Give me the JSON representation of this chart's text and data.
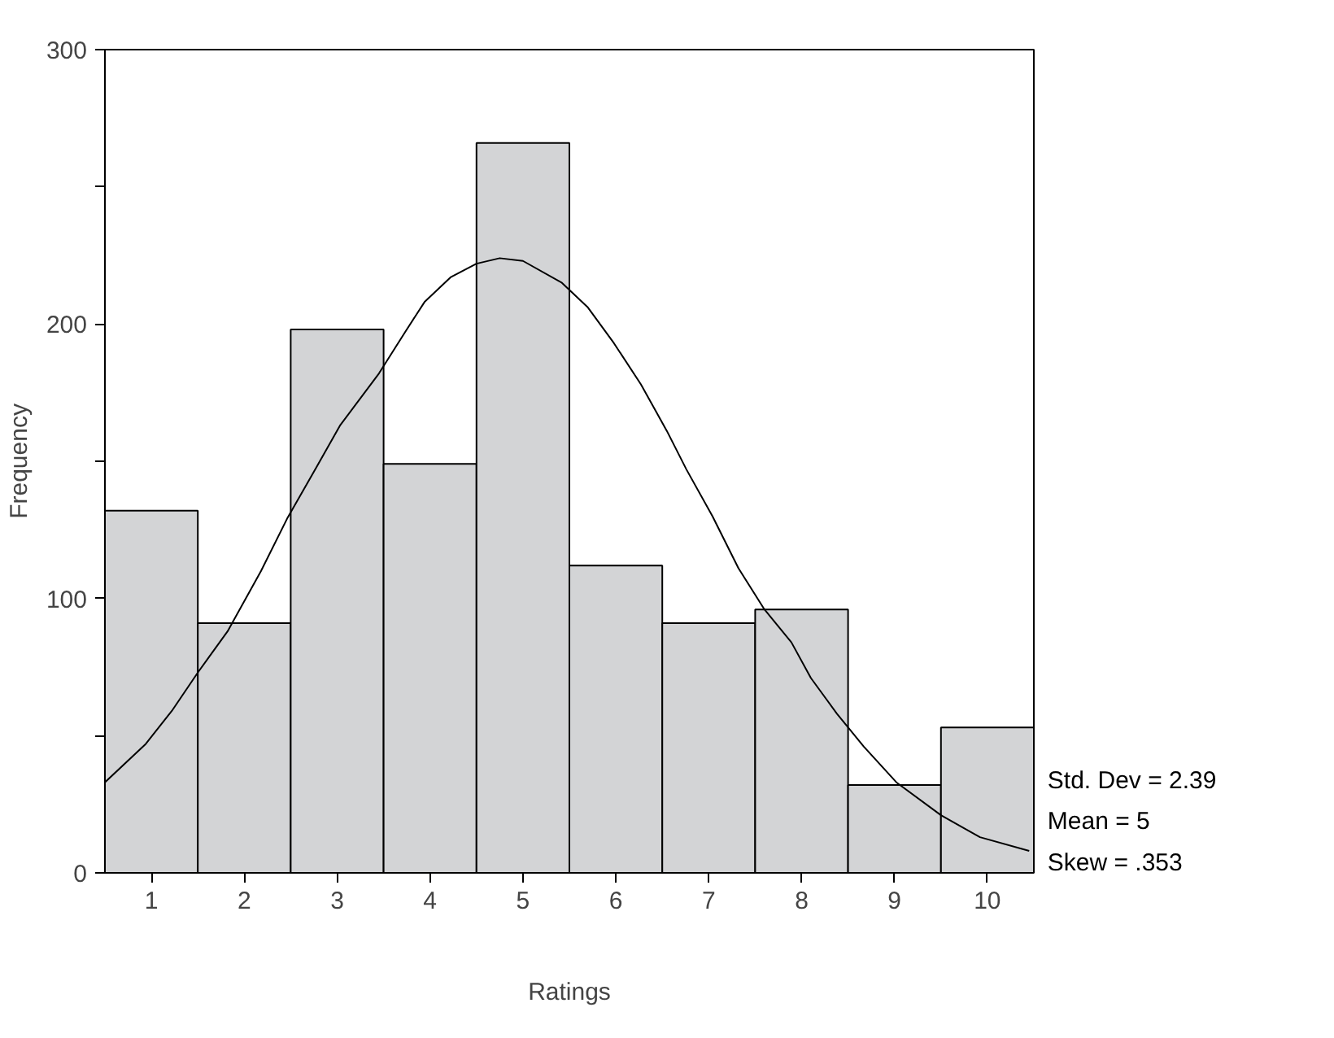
{
  "chart_data": {
    "type": "histogram",
    "xlabel": "Ratings",
    "ylabel": "Frequency",
    "bins": [
      0.5,
      1.5,
      2.5,
      3.5,
      4.5,
      5.5,
      6.5,
      7.5,
      8.5,
      9.5,
      10.5
    ],
    "values": [
      132,
      91,
      198,
      149,
      266,
      112,
      91,
      96,
      32,
      53
    ],
    "color": "#d3d4d6",
    "series": [
      {
        "type": "line",
        "color": "#000000",
        "x": [
          0.5,
          0.94,
          1.22,
          1.5,
          1.82,
          2.18,
          2.46,
          2.78,
          3.03,
          3.45,
          3.73,
          3.94,
          4.22,
          4.5,
          4.75,
          5.0,
          5.42,
          5.7,
          5.98,
          6.27,
          6.55,
          6.76,
          7.04,
          7.32,
          7.6,
          7.89,
          8.1,
          8.38,
          8.67,
          9.02,
          9.5,
          9.92,
          10.45
        ],
        "values": [
          33,
          47,
          59,
          73,
          88,
          110,
          129,
          148,
          163,
          182,
          197,
          208,
          217,
          222,
          224,
          223,
          215,
          206,
          193,
          178,
          161,
          147,
          130,
          111,
          96,
          84,
          71,
          58,
          46,
          33,
          21,
          13,
          8
        ]
      }
    ],
    "xlim": [
      0.5,
      10.5
    ],
    "xticks": [
      1,
      2,
      3,
      4,
      5,
      6,
      7,
      8,
      9,
      10
    ],
    "ylim": [
      0,
      300
    ],
    "yticks": [
      0,
      {
        "value": 50,
        "label": null
      },
      100,
      {
        "value": 150,
        "label": null
      },
      200,
      {
        "value": 250,
        "label": null
      },
      300
    ],
    "grid": false,
    "annotations": [
      "Std. Dev = 2.39",
      "Mean = 5",
      "Skew = .353"
    ]
  }
}
